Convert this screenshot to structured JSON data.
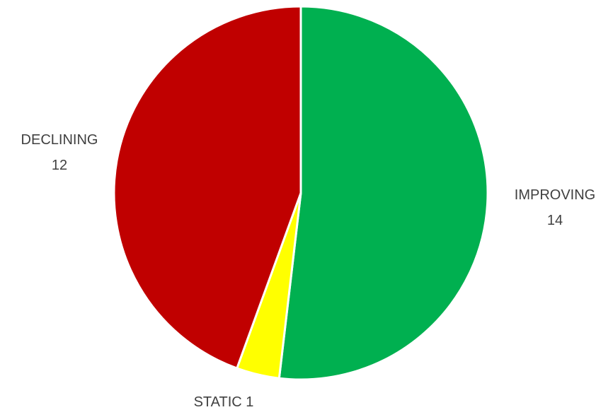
{
  "chart_data": {
    "type": "pie",
    "title": "",
    "slices": [
      {
        "label": "IMPROVING",
        "value": 14,
        "color": "#00b050"
      },
      {
        "label": "STATIC",
        "value": 1,
        "color": "#ffff00"
      },
      {
        "label": "DECLINING",
        "value": 12,
        "color": "#c00000"
      }
    ],
    "start": "12 o'clock",
    "direction": "clockwise",
    "separator_color": "#ffffff",
    "legend": "none",
    "data_labels": "category and value"
  }
}
